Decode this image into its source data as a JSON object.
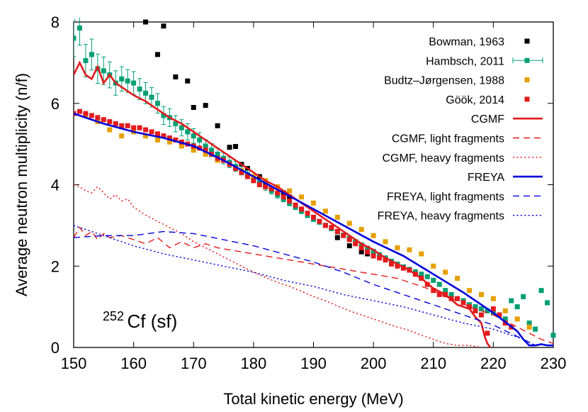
{
  "chart_data": {
    "type": "line",
    "title": "",
    "xlabel": "Total kinetic energy (MeV)",
    "ylabel": "Average neutron multiplicity (n/f)",
    "xlim": [
      150,
      230
    ],
    "ylim": [
      0,
      8
    ],
    "xticks": [
      150,
      160,
      170,
      180,
      190,
      200,
      210,
      220,
      230
    ],
    "yticks": [
      0,
      2,
      4,
      6,
      8
    ],
    "legend_position": "top-right",
    "annotation": {
      "sup": "252",
      "main": "Cf (sf)"
    },
    "series": [
      {
        "name": "Bowman, 1963",
        "kind": "points",
        "color": "#000000",
        "x": [
          162,
          164,
          165,
          167,
          169,
          170,
          172,
          174,
          176,
          177,
          178,
          179,
          181,
          182,
          183,
          185,
          186,
          188,
          190,
          192,
          194,
          196,
          198,
          199
        ],
        "y": [
          8.0,
          7.2,
          7.9,
          6.65,
          6.55,
          5.9,
          5.95,
          5.45,
          4.92,
          4.94,
          4.5,
          4.4,
          4.2,
          4.0,
          3.9,
          3.8,
          3.7,
          3.4,
          3.2,
          3.0,
          2.7,
          2.5,
          2.35,
          2.3
        ]
      },
      {
        "name": "Hambsch, 2011",
        "kind": "points_err",
        "color": "#009e73",
        "x": [
          150,
          151,
          152,
          153,
          154,
          155,
          156,
          157,
          158,
          159,
          160,
          161,
          162,
          163,
          164,
          165,
          166,
          167,
          168,
          169,
          170,
          171,
          172,
          173,
          174,
          175,
          176,
          177,
          178,
          179,
          180,
          181,
          182,
          183,
          184,
          185,
          186,
          187,
          188,
          189,
          190,
          191,
          192,
          193,
          194,
          195,
          196,
          197,
          198,
          199,
          200,
          201,
          202,
          203,
          204,
          205,
          206,
          207,
          208,
          209,
          210,
          211,
          212,
          213,
          214,
          215,
          216,
          217,
          218,
          219,
          220,
          221,
          222,
          223,
          224,
          225,
          226,
          227,
          228,
          229,
          230
        ],
        "y": [
          7.6,
          7.85,
          7.05,
          7.2,
          6.85,
          6.8,
          6.7,
          6.5,
          6.6,
          6.55,
          6.5,
          6.35,
          6.25,
          6.15,
          6.0,
          5.7,
          5.65,
          5.5,
          5.4,
          5.3,
          5.2,
          5.1,
          4.95,
          4.85,
          4.75,
          4.65,
          4.55,
          4.45,
          4.35,
          4.25,
          4.15,
          4.05,
          3.95,
          3.85,
          3.75,
          3.65,
          3.55,
          3.45,
          3.35,
          3.25,
          3.15,
          3.08,
          3.0,
          2.92,
          2.84,
          2.76,
          2.68,
          2.6,
          2.52,
          2.44,
          2.36,
          2.28,
          2.2,
          2.12,
          2.05,
          1.98,
          1.92,
          1.86,
          1.8,
          1.74,
          1.65,
          1.55,
          1.4,
          1.3,
          1.2,
          1.15,
          1.05,
          1.0,
          0.95,
          0.9,
          0.85,
          0.8,
          0.7,
          1.15,
          1.0,
          1.25,
          0.6,
          0.45,
          1.4,
          1.1,
          0.3
        ],
        "err": [
          0.45,
          0.42,
          0.4,
          0.38,
          0.36,
          0.34,
          0.32,
          0.3,
          0.3,
          0.28,
          0.28,
          0.26,
          0.26,
          0.24,
          0.24,
          0.22,
          0.22,
          0.2,
          0.2,
          0.2,
          0.18,
          0.18,
          0.16,
          0.16,
          0.15,
          0.14,
          0.13,
          0.12,
          0.11,
          0.1,
          0.1,
          0.09,
          0.09,
          0.08,
          0.08,
          0.07,
          0.07,
          0.06,
          0.06,
          0.06,
          0.05,
          0.05,
          0.05,
          0.05,
          0.05,
          0.05,
          0.05,
          0.05,
          0.05,
          0.05,
          0.05,
          0.05,
          0.05,
          0.05,
          0.05,
          0.05,
          0.05,
          0.05,
          0.05,
          0.05,
          0.05,
          0.05,
          0.05,
          0.05,
          0.05,
          0.05,
          0.05,
          0.05,
          0.05,
          0.05,
          0.05,
          0.05,
          0.05,
          0.05,
          0.05,
          0.05,
          0.05,
          0.05,
          0.05,
          0.05,
          0.05
        ]
      },
      {
        "name": "Budtz–Jørgensen, 1988",
        "kind": "points",
        "color": "#e69f00",
        "x": [
          150,
          152,
          154,
          156,
          158,
          160,
          162,
          164,
          166,
          168,
          170,
          172,
          174,
          176,
          178,
          180,
          182,
          184,
          186,
          188,
          190,
          192,
          194,
          196,
          198,
          200,
          202,
          204,
          206,
          208,
          210,
          212,
          214,
          216,
          218,
          220,
          222,
          224,
          226
        ],
        "y": [
          5.75,
          5.7,
          5.55,
          5.35,
          5.2,
          5.3,
          5.2,
          5.1,
          5.05,
          4.95,
          4.85,
          4.75,
          4.6,
          4.5,
          4.35,
          4.2,
          4.1,
          3.95,
          3.85,
          3.7,
          3.55,
          3.35,
          3.2,
          3.05,
          2.9,
          2.75,
          2.6,
          2.45,
          2.4,
          2.3,
          2.0,
          1.85,
          1.7,
          1.4,
          1.3,
          1.2,
          0.9,
          0.7,
          0.5
        ]
      },
      {
        "name": "Göök, 2014",
        "kind": "points",
        "color": "#e41a1c",
        "x": [
          150,
          151,
          152,
          153,
          154,
          155,
          156,
          157,
          158,
          159,
          160,
          161,
          162,
          163,
          164,
          165,
          166,
          167,
          168,
          169,
          170,
          171,
          172,
          173,
          174,
          175,
          176,
          177,
          178,
          179,
          180,
          181,
          182,
          183,
          184,
          185,
          186,
          187,
          188,
          189,
          190,
          191,
          192,
          193,
          194,
          195,
          196,
          197,
          198,
          199,
          200,
          201,
          202,
          203,
          204,
          205,
          206,
          207,
          208,
          209,
          210,
          211,
          212,
          213,
          214,
          215,
          216,
          217,
          218,
          219,
          220,
          221,
          222,
          223
        ],
        "y": [
          5.75,
          5.8,
          5.75,
          5.7,
          5.65,
          5.6,
          5.55,
          5.5,
          5.45,
          5.45,
          5.4,
          5.4,
          5.35,
          5.3,
          5.25,
          5.2,
          5.15,
          5.1,
          5.05,
          5.0,
          4.95,
          4.9,
          4.85,
          4.75,
          4.65,
          4.6,
          4.5,
          4.4,
          4.3,
          4.2,
          4.1,
          4.0,
          3.95,
          3.9,
          3.8,
          3.7,
          3.6,
          3.5,
          3.4,
          3.3,
          3.2,
          3.1,
          3.0,
          2.95,
          2.85,
          2.75,
          2.65,
          2.55,
          2.45,
          2.35,
          2.25,
          2.2,
          2.15,
          2.05,
          2.0,
          1.95,
          1.9,
          1.8,
          1.7,
          1.55,
          1.4,
          1.3,
          1.3,
          1.2,
          1.2,
          1.1,
          1.0,
          0.9,
          0.8,
          0.35,
          0.95,
          0.8,
          0.6,
          0.5
        ]
      },
      {
        "name": "CGMF",
        "kind": "line",
        "color": "#e41a1c",
        "dash": "solid",
        "x": [
          150,
          151,
          152,
          153,
          154,
          155,
          156,
          157,
          158,
          160,
          162,
          164,
          166,
          168,
          170,
          172,
          174,
          176,
          178,
          180,
          182,
          184,
          186,
          188,
          190,
          192,
          194,
          196,
          198,
          200,
          202,
          204,
          206,
          208,
          210,
          212,
          214,
          216,
          217,
          218,
          218.5,
          219,
          219.5
        ],
        "y": [
          6.7,
          7.0,
          6.7,
          6.6,
          6.9,
          6.5,
          6.7,
          6.5,
          6.4,
          6.2,
          6.05,
          5.85,
          5.65,
          5.5,
          5.3,
          5.1,
          4.9,
          4.7,
          4.5,
          4.3,
          4.1,
          3.95,
          3.75,
          3.55,
          3.35,
          3.15,
          2.95,
          2.75,
          2.55,
          2.4,
          2.2,
          2.05,
          1.9,
          1.7,
          1.45,
          1.3,
          1.05,
          0.95,
          0.75,
          0.6,
          0.3,
          0.1,
          0.0
        ]
      },
      {
        "name": "CGMF, light fragments",
        "kind": "line",
        "color": "#e41a1c",
        "dash": "dashed",
        "x": [
          150,
          151,
          152,
          153,
          154,
          155,
          156,
          158,
          160,
          162,
          164,
          166,
          168,
          170,
          172,
          174,
          176,
          178,
          180,
          182,
          184,
          186,
          188,
          190,
          192,
          194,
          196,
          198,
          200,
          202,
          204,
          206,
          208,
          210,
          212,
          214,
          216,
          218,
          220,
          222,
          224,
          226,
          228,
          230
        ],
        "y": [
          2.7,
          2.95,
          2.75,
          2.85,
          2.65,
          2.8,
          2.7,
          2.75,
          2.65,
          2.55,
          2.7,
          2.45,
          2.6,
          2.45,
          2.55,
          2.45,
          2.4,
          2.35,
          2.3,
          2.25,
          2.2,
          2.15,
          2.1,
          2.05,
          2.0,
          1.95,
          1.9,
          1.85,
          1.8,
          1.75,
          1.7,
          1.6,
          1.5,
          1.4,
          1.25,
          1.15,
          1.0,
          0.9,
          0.8,
          0.65,
          0.5,
          0.35,
          0.2,
          0.1
        ]
      },
      {
        "name": "CGMF, heavy fragments",
        "kind": "line",
        "color": "#e41a1c",
        "dash": "dotted",
        "x": [
          150,
          151,
          152,
          153,
          154,
          155,
          156,
          157,
          158,
          159,
          160,
          162,
          164,
          166,
          168,
          170,
          172,
          174,
          176,
          178,
          180,
          182,
          184,
          186,
          188,
          190,
          192,
          194,
          196,
          198,
          200,
          202,
          204,
          206,
          208,
          210,
          212,
          214,
          216,
          218
        ],
        "y": [
          4.0,
          3.95,
          3.85,
          3.8,
          3.95,
          3.8,
          3.65,
          3.75,
          3.6,
          3.65,
          3.45,
          3.25,
          3.1,
          2.95,
          2.8,
          2.6,
          2.45,
          2.3,
          2.15,
          2.0,
          1.85,
          1.72,
          1.6,
          1.5,
          1.38,
          1.25,
          1.15,
          1.02,
          0.9,
          0.8,
          0.7,
          0.6,
          0.5,
          0.42,
          0.3,
          0.2,
          0.1,
          0.05,
          0.05,
          0.0
        ]
      },
      {
        "name": "FREYA",
        "kind": "line",
        "color": "#0000dd",
        "dash": "solid",
        "x": [
          150,
          155,
          160,
          165,
          170,
          175,
          180,
          185,
          190,
          195,
          200,
          205,
          210,
          215,
          220,
          224,
          225,
          226,
          227,
          228,
          229,
          230
        ],
        "y": [
          5.75,
          5.5,
          5.3,
          5.15,
          4.95,
          4.6,
          4.2,
          3.8,
          3.4,
          3.0,
          2.6,
          2.25,
          1.8,
          1.35,
          0.85,
          0.4,
          0.2,
          0.05,
          0.05,
          0.08,
          0.05,
          0.05
        ]
      },
      {
        "name": "FREYA, light fragments",
        "kind": "line",
        "color": "#0000dd",
        "dash": "dashed",
        "x": [
          150,
          155,
          160,
          165,
          170,
          175,
          180,
          185,
          190,
          195,
          200,
          205,
          210,
          215,
          220,
          225,
          227
        ],
        "y": [
          2.7,
          2.75,
          2.75,
          2.85,
          2.8,
          2.65,
          2.5,
          2.3,
          2.1,
          1.85,
          1.55,
          1.3,
          1.05,
          0.8,
          0.55,
          0.2,
          0.05
        ]
      },
      {
        "name": "FREYA, heavy fragments",
        "kind": "line",
        "color": "#0000dd",
        "dash": "dotted",
        "x": [
          150,
          155,
          160,
          165,
          170,
          175,
          180,
          185,
          190,
          195,
          200,
          205,
          210,
          215,
          220,
          225,
          227
        ],
        "y": [
          3.0,
          2.75,
          2.5,
          2.3,
          2.15,
          2.0,
          1.85,
          1.65,
          1.5,
          1.3,
          1.15,
          1.0,
          0.8,
          0.6,
          0.45,
          0.2,
          0.05
        ]
      }
    ]
  }
}
